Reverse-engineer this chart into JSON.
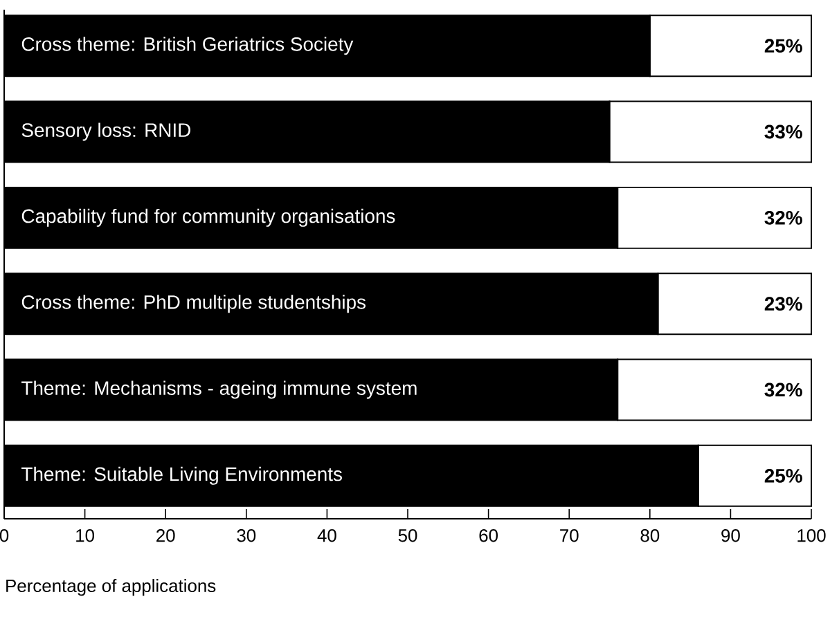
{
  "chart_data": {
    "type": "bar",
    "orientation": "horizontal",
    "stacked": true,
    "categories": [
      "Cross theme: British Geriatrics Society",
      "Sensory loss: RNID",
      "Capability fund for community organisations",
      "Cross theme: PhD multiple studentships",
      "Theme: Mechanisms - ageing immune system",
      "Theme: Suitable Living Environments"
    ],
    "series": [
      {
        "color": "#000000",
        "values": [
          80,
          75,
          76,
          81,
          76,
          86
        ]
      },
      {
        "color": "#ffffff",
        "values": [
          20,
          25,
          24,
          19,
          24,
          14
        ]
      }
    ],
    "annotations": [
      "25%",
      "33%",
      "32%",
      "23%",
      "32%",
      "25%"
    ],
    "xlim": [
      0,
      100
    ],
    "xticks": [
      0,
      10,
      20,
      30,
      40,
      50,
      60,
      70,
      80,
      90,
      100
    ],
    "xlabel": "Percentage of applications"
  }
}
